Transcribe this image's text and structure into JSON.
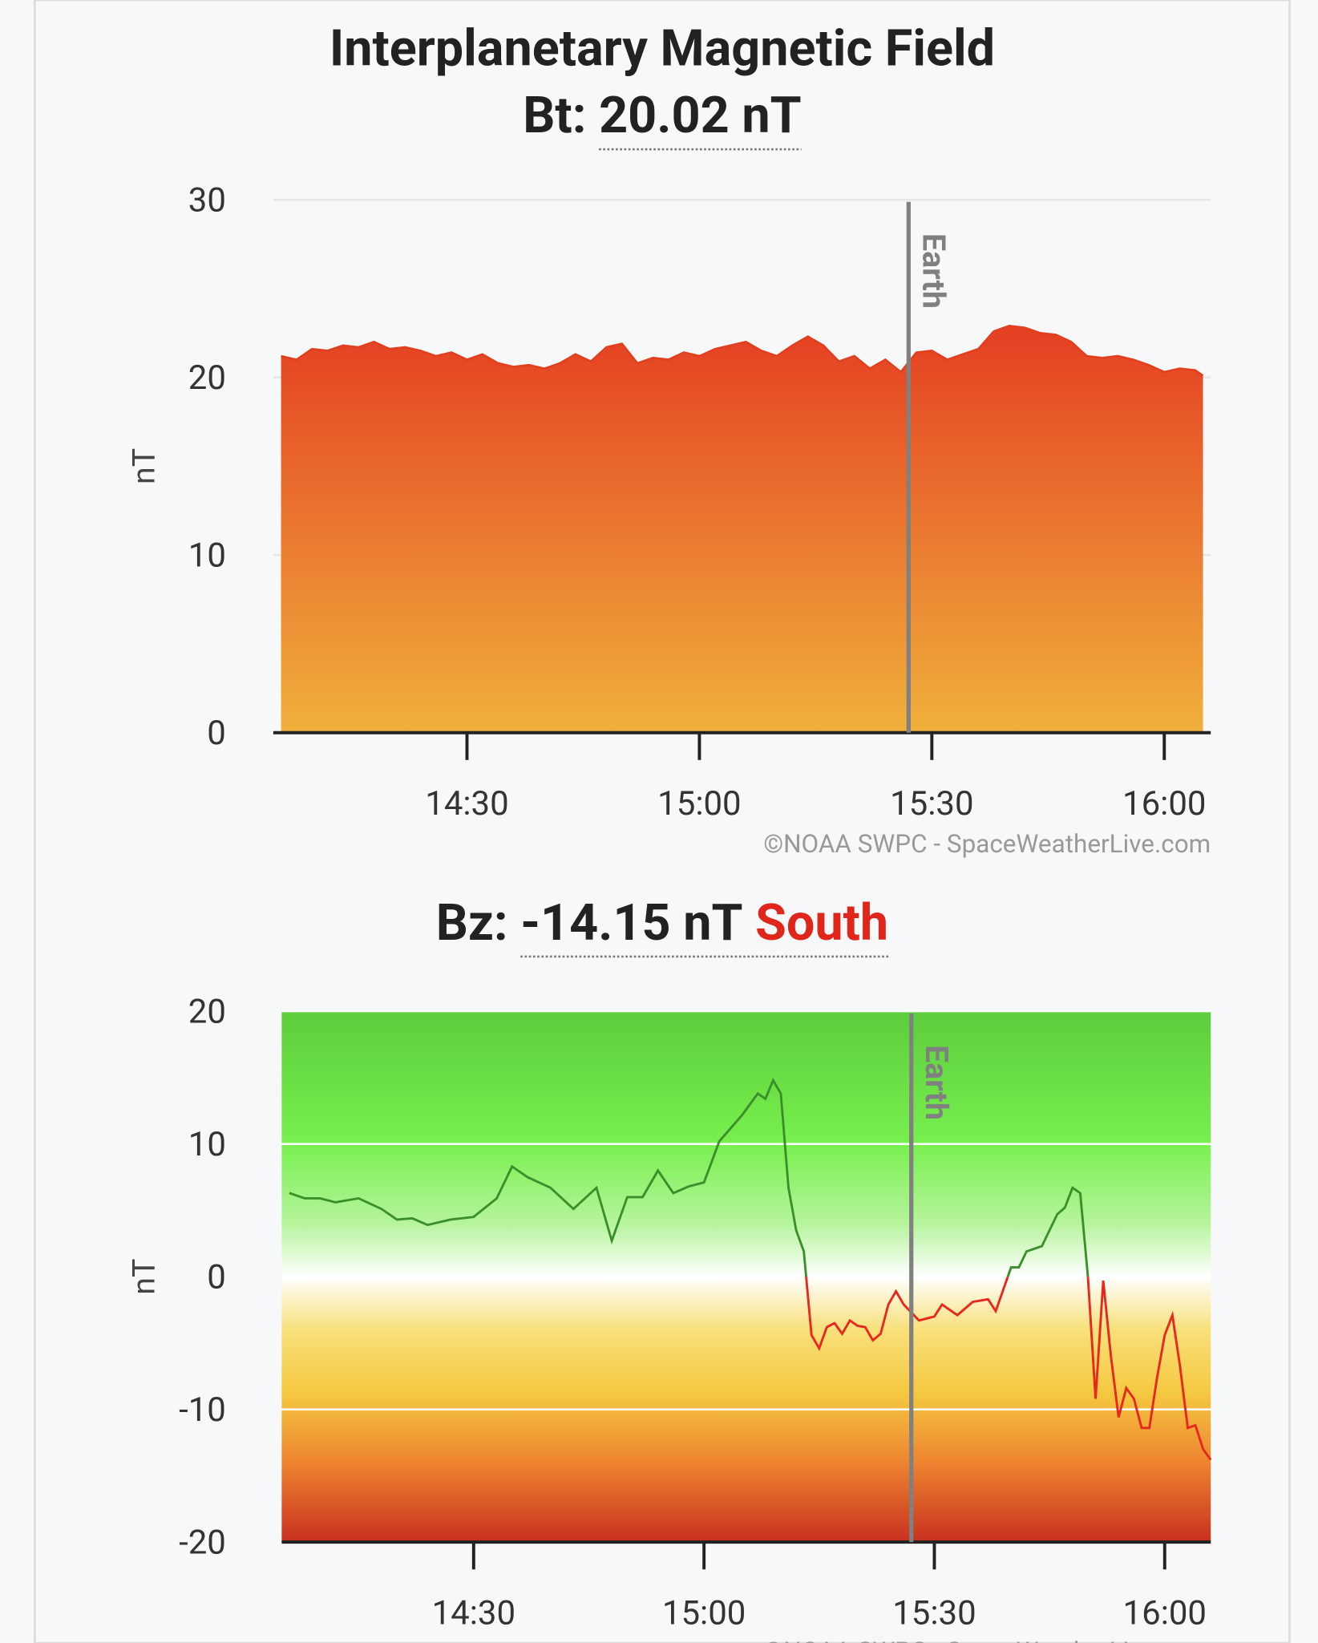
{
  "chart_data": [
    {
      "type": "area",
      "title": "Interplanetary Magnetic Field",
      "subtitle": "Bt:",
      "subtitle_value": "20.02 nT",
      "ylabel": "nT",
      "credit": "©NOAA SWPC - SpaceWeatherLive.com",
      "x": [
        "14:06",
        "14:08",
        "14:10",
        "14:12",
        "14:14",
        "14:16",
        "14:18",
        "14:20",
        "14:22",
        "14:24",
        "14:26",
        "14:28",
        "14:30",
        "14:32",
        "14:34",
        "14:36",
        "14:38",
        "14:40",
        "14:42",
        "14:44",
        "14:46",
        "14:48",
        "14:50",
        "14:52",
        "14:54",
        "14:56",
        "14:58",
        "15:00",
        "15:02",
        "15:04",
        "15:06",
        "15:08",
        "15:10",
        "15:12",
        "15:14",
        "15:16",
        "15:18",
        "15:20",
        "15:22",
        "15:24",
        "15:26",
        "15:28",
        "15:30",
        "15:32",
        "15:34",
        "15:36",
        "15:38",
        "15:40",
        "15:42",
        "15:44",
        "15:46",
        "15:48",
        "15:50",
        "15:52",
        "15:54",
        "15:56",
        "15:58",
        "16:00",
        "16:02",
        "16:04",
        "16:05"
      ],
      "values": [
        21.2,
        21.0,
        21.6,
        21.5,
        21.8,
        21.7,
        22.0,
        21.6,
        21.7,
        21.5,
        21.2,
        21.4,
        21.0,
        21.3,
        20.8,
        20.6,
        20.7,
        20.5,
        20.8,
        21.3,
        20.9,
        21.7,
        21.9,
        20.8,
        21.1,
        21.0,
        21.4,
        21.2,
        21.6,
        21.8,
        22.0,
        21.5,
        21.2,
        21.8,
        22.3,
        21.8,
        20.9,
        21.2,
        20.5,
        21.0,
        20.3,
        21.4,
        21.5,
        21.0,
        21.3,
        21.6,
        22.6,
        22.9,
        22.8,
        22.5,
        22.4,
        22.0,
        21.2,
        21.1,
        21.2,
        21.0,
        20.7,
        20.3,
        20.5,
        20.4,
        20.1
      ],
      "colors": [
        "#e43f22",
        "#f0b03c"
      ],
      "line_color": "#e0401f",
      "xlim": [
        "14:05",
        "16:06"
      ],
      "xticks": [
        "14:30",
        "15:00",
        "15:30",
        "16:00"
      ],
      "ylim": [
        0,
        30
      ],
      "yticks": [
        0,
        10,
        20,
        30
      ],
      "grid": true,
      "annotation": {
        "text": "Earth",
        "x": "15:27"
      }
    },
    {
      "type": "line",
      "subtitle": "Bz:",
      "subtitle_value": "-14.15 nT",
      "subtitle_status": "South",
      "status_color": "#e0261b",
      "ylabel": "nT",
      "credit": "©NOAA SWPC - SpaceWeatherLive.com",
      "x": [
        "14:06",
        "14:08",
        "14:10",
        "14:12",
        "14:15",
        "14:18",
        "14:20",
        "14:22",
        "14:24",
        "14:27",
        "14:30",
        "14:33",
        "14:35",
        "14:37",
        "14:40",
        "14:43",
        "14:46",
        "14:48",
        "14:50",
        "14:52",
        "14:54",
        "14:56",
        "14:58",
        "15:00",
        "15:02",
        "15:05",
        "15:07",
        "15:08",
        "15:09",
        "15:10",
        "15:11",
        "15:12",
        "15:13",
        "15:14",
        "15:15",
        "15:16",
        "15:17",
        "15:18",
        "15:19",
        "15:20",
        "15:21",
        "15:22",
        "15:23",
        "15:24",
        "15:25",
        "15:26",
        "15:28",
        "15:30",
        "15:31",
        "15:33",
        "15:35",
        "15:37",
        "15:38",
        "15:40",
        "15:41",
        "15:42",
        "15:44",
        "15:46",
        "15:47",
        "15:48",
        "15:49",
        "15:50",
        "15:51",
        "15:52",
        "15:53",
        "15:54",
        "15:55",
        "15:56",
        "15:57",
        "15:58",
        "15:59",
        "16:00",
        "16:01",
        "16:02",
        "16:03",
        "16:04",
        "16:05",
        "16:06"
      ],
      "values": [
        6.3,
        5.9,
        5.9,
        5.6,
        5.9,
        5.1,
        4.3,
        4.4,
        3.9,
        4.3,
        4.5,
        5.9,
        8.3,
        7.5,
        6.7,
        5.1,
        6.7,
        2.7,
        6.0,
        6.0,
        8.0,
        6.3,
        6.8,
        7.1,
        10.2,
        12.2,
        13.8,
        13.4,
        14.8,
        13.8,
        6.7,
        3.5,
        1.9,
        -4.4,
        -5.4,
        -3.8,
        -3.5,
        -4.3,
        -3.3,
        -3.7,
        -3.8,
        -4.8,
        -4.3,
        -2.1,
        -1.1,
        -2.1,
        -3.3,
        -3.0,
        -2.1,
        -2.9,
        -1.9,
        -1.7,
        -2.6,
        0.7,
        0.7,
        1.9,
        2.3,
        4.7,
        5.2,
        6.7,
        6.3,
        0,
        -9.2,
        -0.3,
        -6.0,
        -10.6,
        -8.4,
        -9.2,
        -11.4,
        -11.4,
        -7.6,
        -4.4,
        -2.9,
        -6.8,
        -11.4,
        -11.2,
        -13.0,
        -13.8
      ],
      "positive_color": "#3a8f2a",
      "negative_color": "#e8281e",
      "xlim": [
        "14:05",
        "16:06"
      ],
      "xticks": [
        "14:30",
        "15:00",
        "15:30",
        "16:00"
      ],
      "ylim": [
        -20,
        20
      ],
      "yticks": [
        -20,
        -10,
        0,
        10,
        20
      ],
      "grid": true,
      "annotation": {
        "text": "Earth",
        "x": "15:27"
      }
    }
  ]
}
